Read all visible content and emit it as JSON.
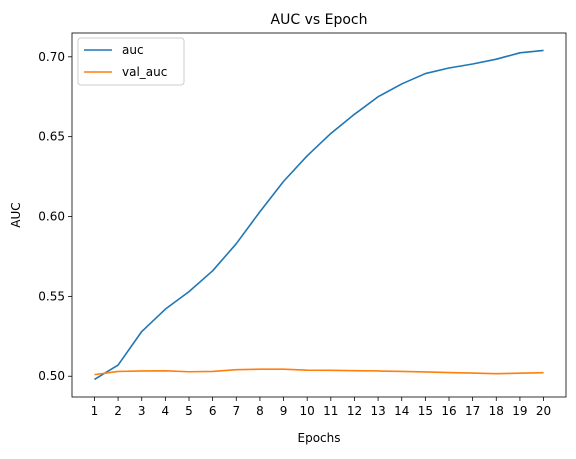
{
  "chart_data": {
    "type": "line",
    "title": "AUC vs Epoch",
    "xlabel": "Epochs",
    "ylabel": "AUC",
    "x": [
      1,
      2,
      3,
      4,
      5,
      6,
      7,
      8,
      9,
      10,
      11,
      12,
      13,
      14,
      15,
      16,
      17,
      18,
      19,
      20
    ],
    "xlim": [
      0.05,
      20.95
    ],
    "ylim": [
      0.487,
      0.7149
    ],
    "x_ticks": [
      "1",
      "2",
      "3",
      "4",
      "5",
      "6",
      "7",
      "8",
      "9",
      "10",
      "11",
      "12",
      "13",
      "14",
      "15",
      "16",
      "17",
      "18",
      "19",
      "20"
    ],
    "y_ticks": [
      {
        "value": 0.5,
        "label": "0.50"
      },
      {
        "value": 0.55,
        "label": "0.55"
      },
      {
        "value": 0.6,
        "label": "0.60"
      },
      {
        "value": 0.65,
        "label": "0.65"
      },
      {
        "value": 0.7,
        "label": "0.70"
      }
    ],
    "grid": false,
    "legend_position": "top-left",
    "series": [
      {
        "name": "auc",
        "color": "#1f77b4",
        "values": [
          0.498,
          0.507,
          0.528,
          0.542,
          0.553,
          0.566,
          0.583,
          0.603,
          0.622,
          0.638,
          0.652,
          0.664,
          0.675,
          0.683,
          0.6895,
          0.693,
          0.6955,
          0.6985,
          0.7025,
          0.704
        ]
      },
      {
        "name": "val_auc",
        "color": "#ff7f0e",
        "values": [
          0.501,
          0.503,
          0.5033,
          0.5034,
          0.5028,
          0.503,
          0.5041,
          0.5044,
          0.5044,
          0.5038,
          0.5037,
          0.5035,
          0.5033,
          0.503,
          0.5027,
          0.5023,
          0.502,
          0.5016,
          0.5019,
          0.5022
        ]
      }
    ]
  }
}
